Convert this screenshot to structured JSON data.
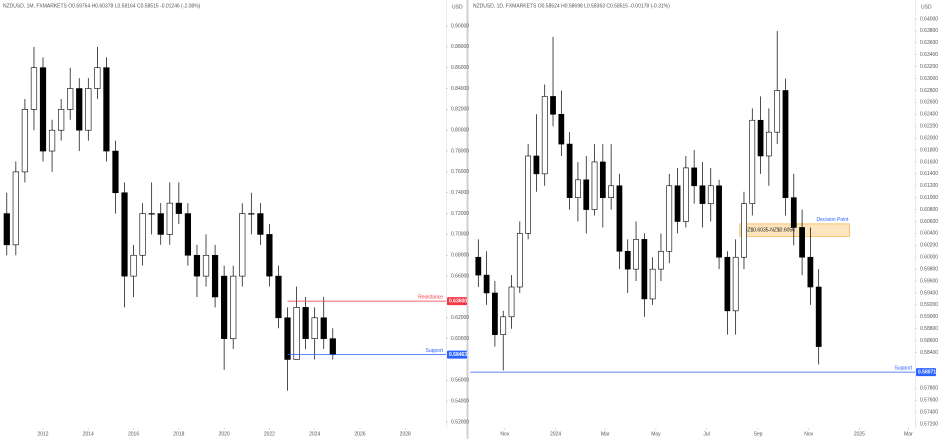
{
  "chart_data": [
    {
      "type": "candlestick",
      "title": "NZDUSD, 1M, FXMARKETS O0.59764 H0.60378 L0.58164 C0.58515 -0.01246 (-2.08%)",
      "currency": "USD",
      "x": [
        2010.4,
        2010.8,
        2011.2,
        2011.6,
        2012.0,
        2012.4,
        2012.8,
        2013.2,
        2013.6,
        2014.0,
        2014.4,
        2014.8,
        2015.2,
        2015.6,
        2016.0,
        2016.4,
        2016.8,
        2017.2,
        2017.6,
        2018.0,
        2018.4,
        2018.8,
        2019.2,
        2019.6,
        2020.0,
        2020.4,
        2020.8,
        2021.2,
        2021.6,
        2022.0,
        2022.4,
        2022.8,
        2023.2,
        2023.6,
        2024.0,
        2024.4,
        2024.8
      ],
      "open": [
        0.72,
        0.69,
        0.76,
        0.82,
        0.86,
        0.78,
        0.8,
        0.82,
        0.84,
        0.8,
        0.84,
        0.86,
        0.78,
        0.74,
        0.66,
        0.68,
        0.72,
        0.72,
        0.7,
        0.73,
        0.72,
        0.68,
        0.66,
        0.68,
        0.66,
        0.6,
        0.66,
        0.72,
        0.72,
        0.7,
        0.66,
        0.62,
        0.58,
        0.63,
        0.6,
        0.62,
        0.6
      ],
      "high": [
        0.74,
        0.77,
        0.83,
        0.88,
        0.87,
        0.81,
        0.83,
        0.86,
        0.85,
        0.85,
        0.88,
        0.87,
        0.79,
        0.75,
        0.69,
        0.73,
        0.75,
        0.73,
        0.75,
        0.75,
        0.73,
        0.69,
        0.7,
        0.69,
        0.67,
        0.67,
        0.73,
        0.74,
        0.73,
        0.71,
        0.67,
        0.63,
        0.65,
        0.64,
        0.63,
        0.64,
        0.61
      ],
      "low": [
        0.68,
        0.68,
        0.75,
        0.8,
        0.77,
        0.76,
        0.79,
        0.81,
        0.78,
        0.79,
        0.83,
        0.77,
        0.72,
        0.63,
        0.64,
        0.67,
        0.7,
        0.69,
        0.69,
        0.71,
        0.67,
        0.64,
        0.65,
        0.63,
        0.57,
        0.59,
        0.65,
        0.7,
        0.69,
        0.65,
        0.61,
        0.55,
        0.58,
        0.59,
        0.58,
        0.59,
        0.58
      ],
      "close": [
        0.69,
        0.76,
        0.82,
        0.86,
        0.78,
        0.8,
        0.82,
        0.84,
        0.8,
        0.84,
        0.86,
        0.78,
        0.74,
        0.66,
        0.68,
        0.72,
        0.72,
        0.7,
        0.73,
        0.72,
        0.68,
        0.66,
        0.68,
        0.64,
        0.6,
        0.66,
        0.72,
        0.72,
        0.7,
        0.66,
        0.62,
        0.58,
        0.63,
        0.6,
        0.62,
        0.6,
        0.585
      ],
      "xlim": [
        2010.1,
        2029.8
      ],
      "xticks": [
        2012,
        2014,
        2016,
        2018,
        2020,
        2022,
        2024,
        2026,
        2028
      ],
      "ylim": [
        0.52,
        0.9
      ],
      "yticks": [
        {
          "value": 0.9,
          "label": "0.90000"
        },
        {
          "value": 0.88,
          "label": "0.88000"
        },
        {
          "value": 0.86,
          "label": "0.86000"
        },
        {
          "value": 0.84,
          "label": "0.84000"
        },
        {
          "value": 0.82,
          "label": "0.82000"
        },
        {
          "value": 0.8,
          "label": "0.80000"
        },
        {
          "value": 0.78,
          "label": "0.78000"
        },
        {
          "value": 0.76,
          "label": "0.76000"
        },
        {
          "value": 0.74,
          "label": "0.74000"
        },
        {
          "value": 0.72,
          "label": "0.72000"
        },
        {
          "value": 0.7,
          "label": "0.70000"
        },
        {
          "value": 0.68,
          "label": "0.68000"
        },
        {
          "value": 0.66,
          "label": "0.66000"
        },
        {
          "value": 0.62,
          "label": "0.62000"
        },
        {
          "value": 0.6,
          "label": "0.60000"
        },
        {
          "value": 0.56,
          "label": "0.56000"
        },
        {
          "value": 0.54,
          "label": "0.54000"
        },
        {
          "value": 0.52,
          "label": "0.52000"
        }
      ],
      "levels": [
        {
          "name": "Resistance",
          "value": 0.636,
          "label": "0.63600",
          "color": "#f23645",
          "start": 2022.8
        },
        {
          "name": "Support",
          "value": 0.58463,
          "color": "#2962ff",
          "start": 2022.8
        }
      ]
    },
    {
      "type": "candlestick",
      "title": "NZDUSD, 1D, FXMARKETS O0.58524 H0.58698 L0.58363 C0.58515 -0.00178 (-0.31%)",
      "currency": "USD",
      "x": [
        "2023-09-30",
        "2023-10-10",
        "2023-10-20",
        "2023-10-30",
        "2023-11-09",
        "2023-11-19",
        "2023-11-29",
        "2023-12-09",
        "2023-12-19",
        "2023-12-29",
        "2024-01-08",
        "2024-01-18",
        "2024-01-28",
        "2024-02-07",
        "2024-02-17",
        "2024-02-27",
        "2024-03-08",
        "2024-03-18",
        "2024-03-28",
        "2024-04-07",
        "2024-04-17",
        "2024-04-27",
        "2024-05-07",
        "2024-05-17",
        "2024-05-27",
        "2024-06-06",
        "2024-06-16",
        "2024-06-26",
        "2024-07-06",
        "2024-07-16",
        "2024-07-26",
        "2024-08-05",
        "2024-08-15",
        "2024-08-25",
        "2024-09-04",
        "2024-09-14",
        "2024-09-24",
        "2024-10-04",
        "2024-10-14",
        "2024-10-24",
        "2024-11-03",
        "2024-11-13"
      ],
      "open": [
        0.6,
        0.597,
        0.594,
        0.587,
        0.59,
        0.595,
        0.604,
        0.617,
        0.614,
        0.627,
        0.624,
        0.619,
        0.61,
        0.613,
        0.608,
        0.616,
        0.61,
        0.612,
        0.601,
        0.598,
        0.603,
        0.593,
        0.598,
        0.601,
        0.612,
        0.606,
        0.615,
        0.612,
        0.609,
        0.612,
        0.6,
        0.591,
        0.6,
        0.609,
        0.623,
        0.617,
        0.621,
        0.628,
        0.61,
        0.605,
        0.6,
        0.595
      ],
      "high": [
        0.603,
        0.601,
        0.596,
        0.591,
        0.597,
        0.606,
        0.619,
        0.624,
        0.629,
        0.637,
        0.628,
        0.621,
        0.616,
        0.617,
        0.619,
        0.619,
        0.619,
        0.614,
        0.603,
        0.606,
        0.604,
        0.6,
        0.604,
        0.614,
        0.615,
        0.617,
        0.618,
        0.616,
        0.615,
        0.613,
        0.601,
        0.603,
        0.611,
        0.625,
        0.627,
        0.625,
        0.638,
        0.63,
        0.614,
        0.608,
        0.605,
        0.598
      ],
      "low": [
        0.595,
        0.592,
        0.585,
        0.581,
        0.588,
        0.594,
        0.603,
        0.611,
        0.612,
        0.622,
        0.617,
        0.608,
        0.606,
        0.604,
        0.607,
        0.605,
        0.608,
        0.598,
        0.594,
        0.596,
        0.59,
        0.592,
        0.596,
        0.599,
        0.604,
        0.605,
        0.609,
        0.605,
        0.606,
        0.598,
        0.587,
        0.587,
        0.598,
        0.607,
        0.614,
        0.612,
        0.619,
        0.607,
        0.602,
        0.597,
        0.592,
        0.582
      ],
      "close": [
        0.597,
        0.594,
        0.587,
        0.59,
        0.595,
        0.604,
        0.617,
        0.614,
        0.627,
        0.624,
        0.619,
        0.61,
        0.613,
        0.608,
        0.616,
        0.61,
        0.612,
        0.601,
        0.598,
        0.603,
        0.593,
        0.598,
        0.601,
        0.612,
        0.606,
        0.615,
        0.612,
        0.609,
        0.612,
        0.6,
        0.591,
        0.6,
        0.609,
        0.623,
        0.617,
        0.621,
        0.628,
        0.61,
        0.605,
        0.6,
        0.595,
        0.585
      ],
      "xlim": [
        "2023-09-20",
        "2025-03-09"
      ],
      "xticks": [
        {
          "value": "2023-11-01",
          "label": "Nov"
        },
        {
          "value": "2024-01-01",
          "label": "2024"
        },
        {
          "value": "2024-03-01",
          "label": "Mar"
        },
        {
          "value": "2024-05-01",
          "label": "May"
        },
        {
          "value": "2024-07-01",
          "label": "Jul"
        },
        {
          "value": "2024-09-01",
          "label": "Sep"
        },
        {
          "value": "2024-11-01",
          "label": "Nov"
        },
        {
          "value": "2025-01-01",
          "label": "2025"
        },
        {
          "value": "2025-03-01",
          "label": "Mar"
        }
      ],
      "ylim": [
        0.572,
        0.64
      ],
      "yticks": [
        {
          "value": 0.64,
          "label": "0.64000"
        },
        {
          "value": 0.638,
          "label": "0.63800"
        },
        {
          "value": 0.636,
          "label": "0.63600"
        },
        {
          "value": 0.634,
          "label": "0.63400"
        },
        {
          "value": 0.632,
          "label": "0.63200"
        },
        {
          "value": 0.63,
          "label": "0.63000"
        },
        {
          "value": 0.628,
          "label": "0.62800"
        },
        {
          "value": 0.626,
          "label": "0.62600"
        },
        {
          "value": 0.624,
          "label": "0.62400"
        },
        {
          "value": 0.622,
          "label": "0.62200"
        },
        {
          "value": 0.62,
          "label": "0.62000"
        },
        {
          "value": 0.618,
          "label": "0.61800"
        },
        {
          "value": 0.616,
          "label": "0.61600"
        },
        {
          "value": 0.614,
          "label": "0.61400"
        },
        {
          "value": 0.612,
          "label": "0.61200"
        },
        {
          "value": 0.61,
          "label": "0.61000"
        },
        {
          "value": 0.608,
          "label": "0.60800"
        },
        {
          "value": 0.606,
          "label": "0.60600"
        },
        {
          "value": 0.604,
          "label": "0.60400"
        },
        {
          "value": 0.602,
          "label": "0.60200"
        },
        {
          "value": 0.6,
          "label": "0.60000"
        },
        {
          "value": 0.598,
          "label": "0.59800"
        },
        {
          "value": 0.596,
          "label": "0.59600"
        },
        {
          "value": 0.594,
          "label": "0.59400"
        },
        {
          "value": 0.592,
          "label": "0.59200"
        },
        {
          "value": 0.59,
          "label": "0.59000"
        },
        {
          "value": 0.588,
          "label": "0.58800"
        },
        {
          "value": 0.586,
          "label": "0.58600"
        },
        {
          "value": 0.584,
          "label": "0.58400"
        },
        {
          "value": 0.578,
          "label": "0.57800"
        },
        {
          "value": 0.576,
          "label": "0.57600"
        },
        {
          "value": 0.574,
          "label": "0.57400"
        },
        {
          "value": 0.572,
          "label": "0.57200"
        }
      ],
      "levels": [
        {
          "name": "Support",
          "value": 0.58071,
          "color": "#2962ff",
          "start": "2023-09-20"
        }
      ],
      "zone": {
        "label": "Decision Point",
        "text": "NZ$0.6035-NZ$0.6056",
        "low": 0.6035,
        "high": 0.6056,
        "start": "2024-08-10",
        "end": "2024-12-20",
        "color": "#f5a623"
      }
    }
  ]
}
